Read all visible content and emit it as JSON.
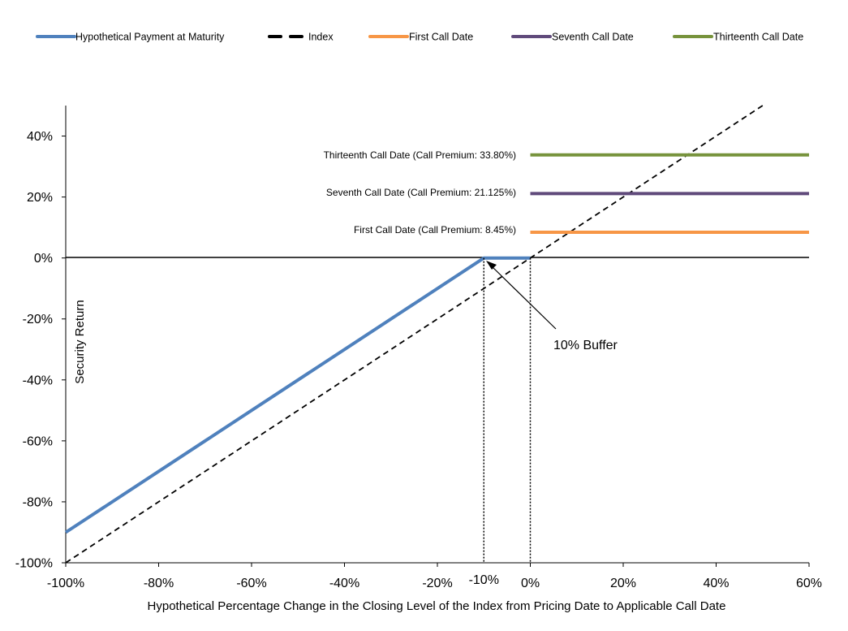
{
  "chart_data": {
    "type": "line",
    "xlabel": "Hypothetical Percentage Change in the Closing Level of the Index from Pricing Date to Applicable Call Date",
    "ylabel": "Security Return",
    "xlim": [
      -100,
      60
    ],
    "ylim": [
      -100,
      50
    ],
    "x_ticks": [
      -100,
      -80,
      -60,
      -40,
      -20,
      0,
      20,
      40,
      60
    ],
    "x_tick_labels": [
      "-100%",
      "-80%",
      "-60%",
      "-40%",
      "-20%",
      "0%",
      "20%",
      "40%",
      "60%"
    ],
    "y_ticks": [
      -100,
      -80,
      -60,
      -40,
      -20,
      0,
      20,
      40
    ],
    "y_tick_labels": [
      "-100%",
      "-80%",
      "-60%",
      "-40%",
      "-20%",
      "0%",
      "20%",
      "40%"
    ],
    "extra_x_tick": {
      "value": -10,
      "label": "-10%"
    },
    "grid": false,
    "legend_position": "top",
    "series": [
      {
        "name": "Hypothetical Payment at Maturity",
        "color": "#4f81bd",
        "style": "solid",
        "x": [
          -100,
          -10,
          0
        ],
        "y": [
          -90,
          0,
          0
        ]
      },
      {
        "name": "Index",
        "color": "#000000",
        "style": "dashed",
        "x": [
          -100,
          50
        ],
        "y": [
          -100,
          50
        ]
      },
      {
        "name": "First Call Date",
        "color": "#f79646",
        "style": "solid",
        "x": [
          0,
          60
        ],
        "y": [
          8.45,
          8.45
        ]
      },
      {
        "name": "Seventh Call Date",
        "color": "#604a7b",
        "style": "solid",
        "x": [
          0,
          60
        ],
        "y": [
          21.125,
          21.125
        ]
      },
      {
        "name": "Thirteenth Call Date",
        "color": "#77933c",
        "style": "solid",
        "x": [
          0,
          60
        ],
        "y": [
          33.8,
          33.8
        ]
      }
    ],
    "annotations": {
      "thirteenth": "Thirteenth  Call Date (Call Premium: 33.80%)",
      "seventh": "Seventh  Call Date (Call Premium: 21.125%)",
      "first": "First Call Date (Call Premium: 8.45%)",
      "buffer": "10% Buffer"
    }
  }
}
